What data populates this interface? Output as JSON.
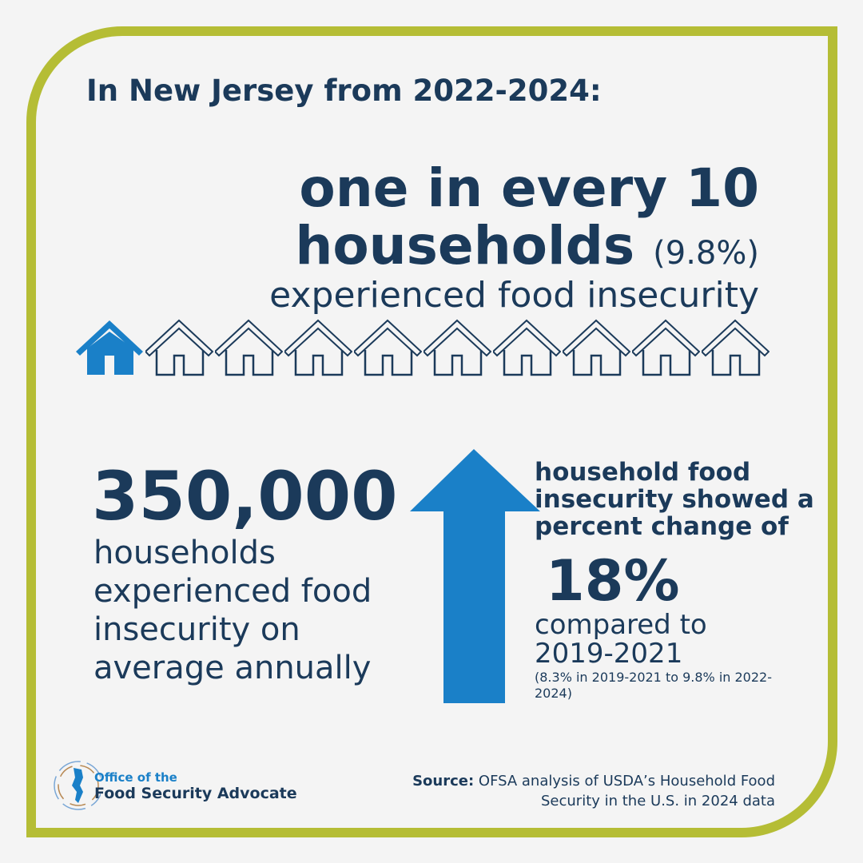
{
  "header": {
    "title": "In New Jersey from 2022-2024:"
  },
  "headline": {
    "line1": "one in every 10",
    "line2": "households",
    "percent": "(9.8%)",
    "line3": "experienced food insecurity"
  },
  "houses": {
    "total": 10,
    "highlighted": 1,
    "highlight_color": "#1a80c8",
    "outline_color": "#1b3a5a"
  },
  "stat_households": {
    "value": "350,000",
    "text": "households experienced food insecurity on average annually"
  },
  "arrow": {
    "direction": "up",
    "color": "#1a80c8"
  },
  "change": {
    "intro": "household food insecurity showed a percent change of",
    "value": "18%",
    "compared": "compared to 2019-2021",
    "note": "(8.3% in 2019-2021 to 9.8% in 2022-2024)"
  },
  "source": {
    "label": "Source:",
    "text": "OFSA analysis of USDA’s Household Food Security in the U.S. in 2024 data"
  },
  "logo": {
    "line1": "Office of the",
    "line2": "Food Security Advocate"
  },
  "colors": {
    "border": "#b5bd35",
    "text": "#1b3a5a",
    "accent": "#1a80c8",
    "background": "#f4f4f4"
  }
}
